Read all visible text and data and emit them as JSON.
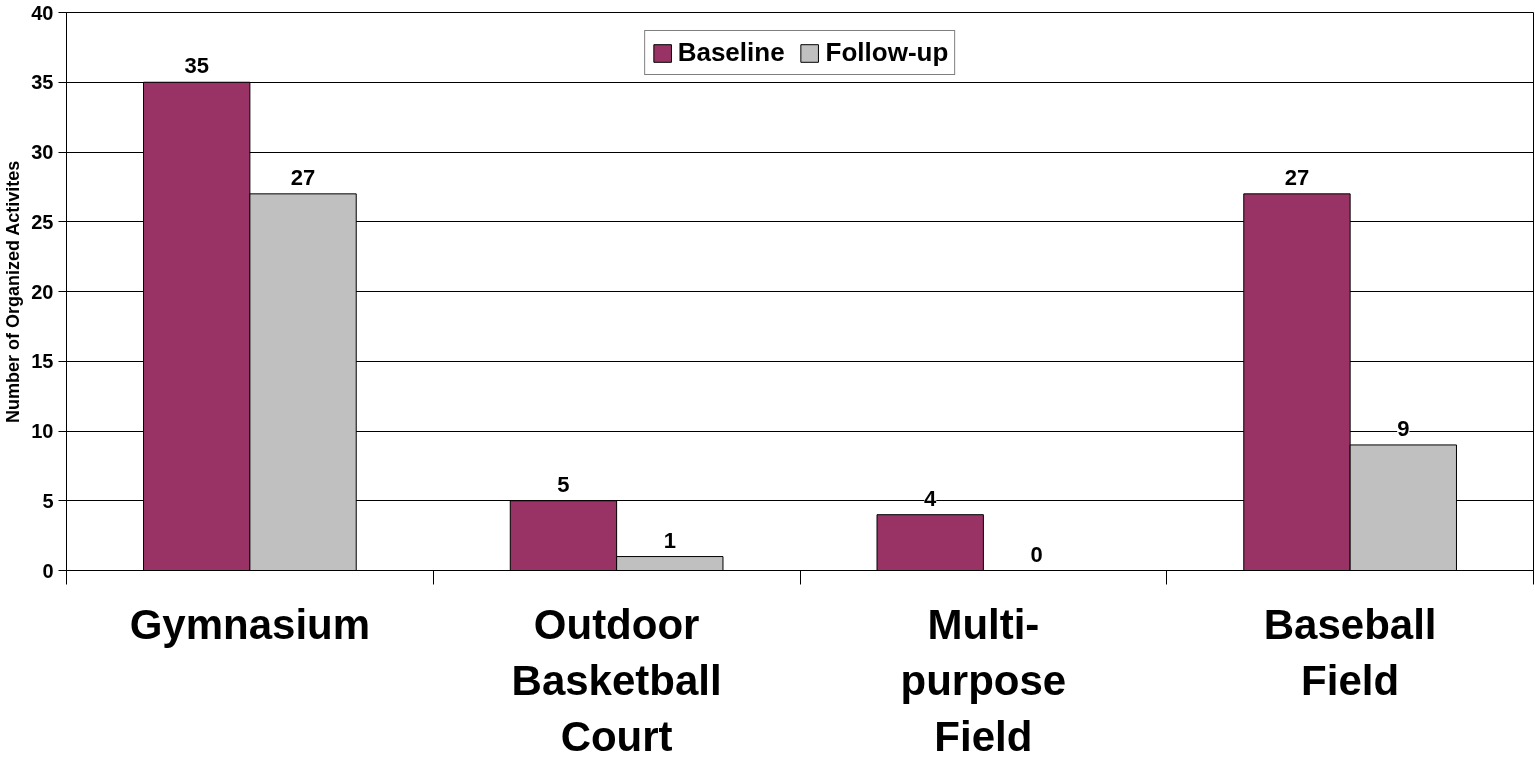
{
  "chart_data": {
    "type": "bar",
    "ylabel": "Number of Organized Activites",
    "categories": [
      "Gymnasium",
      "Outdoor\nBasketball\nCourt",
      "Multi-\npurpose\nField",
      "Baseball\nField"
    ],
    "series": [
      {
        "name": "Baseline",
        "color": "#993366",
        "values": [
          35,
          5,
          4,
          27
        ]
      },
      {
        "name": "Follow-up",
        "color": "#c0c0c0",
        "values": [
          27,
          1,
          0,
          9
        ]
      }
    ],
    "ylim": [
      0,
      40
    ],
    "yticks": [
      0,
      5,
      10,
      15,
      20,
      25,
      30,
      35,
      40
    ],
    "grid": "y",
    "legend": "top",
    "data_labels": true
  }
}
